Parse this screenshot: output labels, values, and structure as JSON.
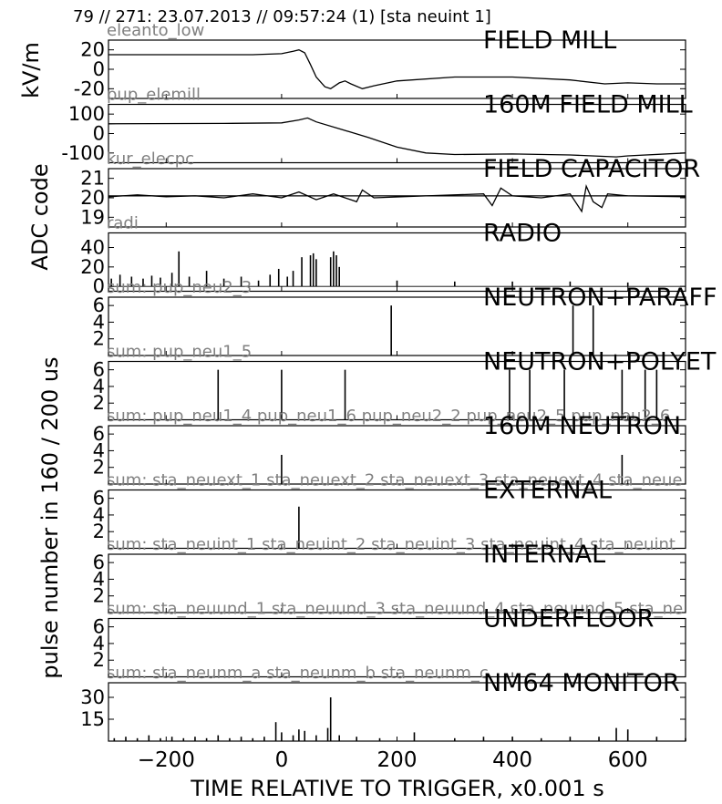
{
  "header": {
    "title": "79 // 271:   23.07.2013 // 09:57:24 (1)  [sta neuint 1]"
  },
  "chart_data": {
    "type": "line",
    "xlabel": "TIME RELATIVE TO TRIGGER,   x0.001 s",
    "xlim": [
      -300,
      700
    ],
    "xticks": [
      -200,
      0,
      200,
      400,
      600
    ],
    "ylabels": [
      {
        "text": "kV/m"
      },
      {
        "text": "ADC code"
      },
      {
        "text": "pulse number in 160 / 200 us"
      }
    ],
    "panels": [
      {
        "id": "field-mill",
        "title": "FIELD MILL",
        "channel": "eleanto_low",
        "ylim": [
          -30,
          30
        ],
        "yticks": [
          20,
          0,
          -20
        ],
        "ytick_labels": [
          "20",
          "0",
          "-20"
        ],
        "style": "line",
        "points": [
          [
            -300,
            15
          ],
          [
            -50,
            15
          ],
          [
            0,
            16
          ],
          [
            20,
            18.5
          ],
          [
            30,
            20
          ],
          [
            40,
            17
          ],
          [
            50,
            5
          ],
          [
            60,
            -8
          ],
          [
            75,
            -18
          ],
          [
            85,
            -20
          ],
          [
            100,
            -14
          ],
          [
            110,
            -12
          ],
          [
            120,
            -15
          ],
          [
            140,
            -20
          ],
          [
            160,
            -17
          ],
          [
            200,
            -12
          ],
          [
            300,
            -8
          ],
          [
            400,
            -8
          ],
          [
            500,
            -11
          ],
          [
            560,
            -15
          ],
          [
            600,
            -14
          ],
          [
            650,
            -15
          ],
          [
            700,
            -15
          ]
        ]
      },
      {
        "id": "field-mill-160m",
        "title": "160M FIELD MILL",
        "channel": "pup_elemill",
        "ylim": [
          -150,
          150
        ],
        "yticks": [
          100,
          0,
          -100
        ],
        "ytick_labels": [
          "100",
          "0",
          "-100"
        ],
        "style": "line",
        "points": [
          [
            -300,
            50
          ],
          [
            -100,
            52
          ],
          [
            0,
            55
          ],
          [
            30,
            70
          ],
          [
            45,
            80
          ],
          [
            60,
            60
          ],
          [
            100,
            25
          ],
          [
            150,
            -20
          ],
          [
            200,
            -70
          ],
          [
            250,
            -100
          ],
          [
            300,
            -108
          ],
          [
            400,
            -105
          ],
          [
            500,
            -110
          ],
          [
            580,
            -120
          ],
          [
            600,
            -115
          ],
          [
            700,
            -100
          ]
        ]
      },
      {
        "id": "field-capacitor",
        "title": "FIELD CAPACITOR",
        "channel": "kur_elecpc",
        "ylim": [
          18.5,
          21.5
        ],
        "yticks": [
          21,
          20,
          19
        ],
        "ytick_labels": [
          "21",
          "20",
          "19"
        ],
        "style": "line",
        "baseline": 20.1,
        "points": [
          [
            -300,
            20.05
          ],
          [
            -250,
            20.15
          ],
          [
            -200,
            20.05
          ],
          [
            -150,
            20.1
          ],
          [
            -100,
            20.0
          ],
          [
            -50,
            20.2
          ],
          [
            0,
            20.0
          ],
          [
            30,
            20.3
          ],
          [
            60,
            19.9
          ],
          [
            90,
            20.2
          ],
          [
            130,
            19.8
          ],
          [
            140,
            20.4
          ],
          [
            160,
            20.0
          ],
          [
            250,
            20.1
          ],
          [
            350,
            20.2
          ],
          [
            365,
            19.6
          ],
          [
            380,
            20.5
          ],
          [
            400,
            20.1
          ],
          [
            450,
            20.0
          ],
          [
            500,
            20.2
          ],
          [
            520,
            19.3
          ],
          [
            528,
            20.6
          ],
          [
            540,
            19.8
          ],
          [
            555,
            19.5
          ],
          [
            565,
            20.2
          ],
          [
            600,
            20.1
          ],
          [
            700,
            20.05
          ]
        ]
      },
      {
        "id": "radio",
        "title": "RADIO",
        "channel": "radi",
        "ylim": [
          -5,
          55
        ],
        "yticks": [
          40,
          20,
          0
        ],
        "ytick_labels": [
          "40",
          "20",
          "0"
        ],
        "style": "spikes",
        "spikes": [
          [
            -295,
            8
          ],
          [
            -280,
            12
          ],
          [
            -260,
            10
          ],
          [
            -240,
            8
          ],
          [
            -225,
            11
          ],
          [
            -210,
            9
          ],
          [
            -190,
            14
          ],
          [
            -178,
            36
          ],
          [
            -160,
            10
          ],
          [
            -130,
            16
          ],
          [
            -100,
            8
          ],
          [
            -70,
            10
          ],
          [
            -40,
            6
          ],
          [
            -20,
            12
          ],
          [
            -5,
            18
          ],
          [
            10,
            10
          ],
          [
            20,
            16
          ],
          [
            35,
            30
          ],
          [
            50,
            32
          ],
          [
            55,
            34
          ],
          [
            60,
            28
          ],
          [
            85,
            30
          ],
          [
            90,
            36
          ],
          [
            95,
            32
          ],
          [
            100,
            20
          ],
          [
            200,
            6
          ],
          [
            300,
            5
          ],
          [
            400,
            5
          ],
          [
            500,
            5
          ],
          [
            600,
            4
          ]
        ]
      },
      {
        "id": "neutron-paraffin",
        "title": "NEUTRON+PARAFF",
        "channel": "sum: pup_neu2_3",
        "ylim": [
          0,
          7
        ],
        "yticks": [
          6,
          4,
          2
        ],
        "ytick_labels": [
          "6",
          "4",
          "2"
        ],
        "style": "spikes",
        "spikes": [
          [
            190,
            6
          ],
          [
            505,
            6
          ],
          [
            540,
            6
          ]
        ]
      },
      {
        "id": "neutron-polyethylene",
        "title": "NEUTRON+POLYET",
        "channel": "sum: pup_neu1_5",
        "ylim": [
          0,
          7
        ],
        "yticks": [
          6,
          4,
          2
        ],
        "ytick_labels": [
          "6",
          "4",
          "2"
        ],
        "style": "spikes",
        "spikes": [
          [
            -110,
            6
          ],
          [
            0,
            6
          ],
          [
            110,
            6
          ],
          [
            395,
            6
          ],
          [
            430,
            6
          ],
          [
            490,
            6
          ],
          [
            590,
            6
          ],
          [
            630,
            6
          ],
          [
            650,
            6
          ]
        ]
      },
      {
        "id": "neutron-160m",
        "title": "160M NEUTRON",
        "channel": "sum: pup_neu1_4 pup_neu1_6 pup_neu2_2 pup_neu2_5 pup_neu2_6",
        "ylim": [
          0,
          7
        ],
        "yticks": [
          6,
          4,
          2
        ],
        "ytick_labels": [
          "6",
          "4",
          "2"
        ],
        "style": "spikes",
        "spikes": [
          [
            0,
            3.5
          ],
          [
            590,
            3.5
          ]
        ]
      },
      {
        "id": "external",
        "title": "EXTERNAL",
        "channel": "sum: sta_neuext_1 sta_neuext_2 sta_neuext_3 sta_neuext_4 sta_neue",
        "ylim": [
          0,
          7
        ],
        "yticks": [
          6,
          4,
          2
        ],
        "ytick_labels": [
          "6",
          "4",
          "2"
        ],
        "style": "spikes",
        "spikes": [
          [
            30,
            5
          ]
        ]
      },
      {
        "id": "internal",
        "title": "INTERNAL",
        "channel": "sum: sta_neuint_1 sta_neuint_2 sta_neuint_3 sta_neuint_4 sta_neuint",
        "ylim": [
          0,
          7
        ],
        "yticks": [
          6,
          4,
          2
        ],
        "ytick_labels": [
          "6",
          "4",
          "2"
        ],
        "style": "spikes",
        "spikes": []
      },
      {
        "id": "underfloor",
        "title": "UNDERFLOOR",
        "channel": "sum: sta_neuund_1 sta_neuund_3 sta_neuund_4 sta_neuund_5 sta_ne",
        "ylim": [
          0,
          7
        ],
        "yticks": [
          6,
          4,
          2
        ],
        "ytick_labels": [
          "6",
          "4",
          "2"
        ],
        "style": "spikes",
        "spikes": []
      },
      {
        "id": "nm64-monitor",
        "title": "NM64 MONITOR",
        "channel": "sum: sta_neunm_a sta_neunm_b sta_neunm_c",
        "ylim": [
          0,
          40
        ],
        "yticks": [
          30,
          15
        ],
        "ytick_labels": [
          "30",
          "15"
        ],
        "style": "spikes",
        "spikes": [
          [
            -290,
            2
          ],
          [
            -270,
            3
          ],
          [
            -250,
            2
          ],
          [
            -230,
            4
          ],
          [
            -210,
            2
          ],
          [
            -190,
            3
          ],
          [
            -170,
            2
          ],
          [
            -150,
            3
          ],
          [
            -130,
            2
          ],
          [
            -110,
            4
          ],
          [
            -90,
            2
          ],
          [
            -70,
            3
          ],
          [
            -50,
            2
          ],
          [
            -30,
            3
          ],
          [
            -10,
            13
          ],
          [
            0,
            6
          ],
          [
            20,
            4
          ],
          [
            30,
            8
          ],
          [
            40,
            7
          ],
          [
            60,
            4
          ],
          [
            80,
            9
          ],
          [
            85,
            30
          ],
          [
            100,
            4
          ],
          [
            130,
            3
          ],
          [
            170,
            2
          ],
          [
            230,
            6
          ],
          [
            300,
            2
          ],
          [
            350,
            3
          ],
          [
            400,
            3
          ],
          [
            450,
            2
          ],
          [
            500,
            3
          ],
          [
            550,
            3
          ],
          [
            580,
            9
          ],
          [
            600,
            8
          ],
          [
            650,
            3
          ],
          [
            700,
            2
          ]
        ]
      }
    ]
  }
}
